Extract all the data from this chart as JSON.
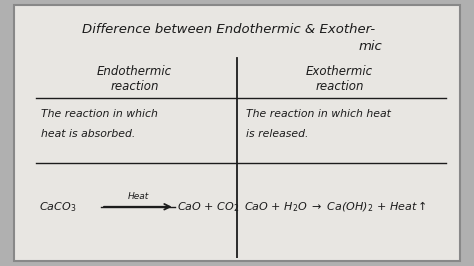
{
  "title_line1": "Difference between Endothermic & Exother-",
  "title_line2": "mic",
  "col1_header1": "Endothermic",
  "col1_header2": "reaction",
  "col2_header1": "Exothermic",
  "col2_header2": "reaction",
  "col1_def1": "The reaction in which",
  "col1_def2": "heat is absorbed.",
  "col2_def1": "The reaction in which heat",
  "col2_def2": "is released.",
  "bg_color": "#b0b0b0",
  "board_color": "#dddbd8",
  "board_inner": "#e8e6e2",
  "text_color": "#1c1c1c",
  "line_color": "#1c1c1c",
  "title_fontsize": 9.5,
  "header_fontsize": 8.5,
  "def_fontsize": 7.8,
  "eq_fontsize": 8.0
}
